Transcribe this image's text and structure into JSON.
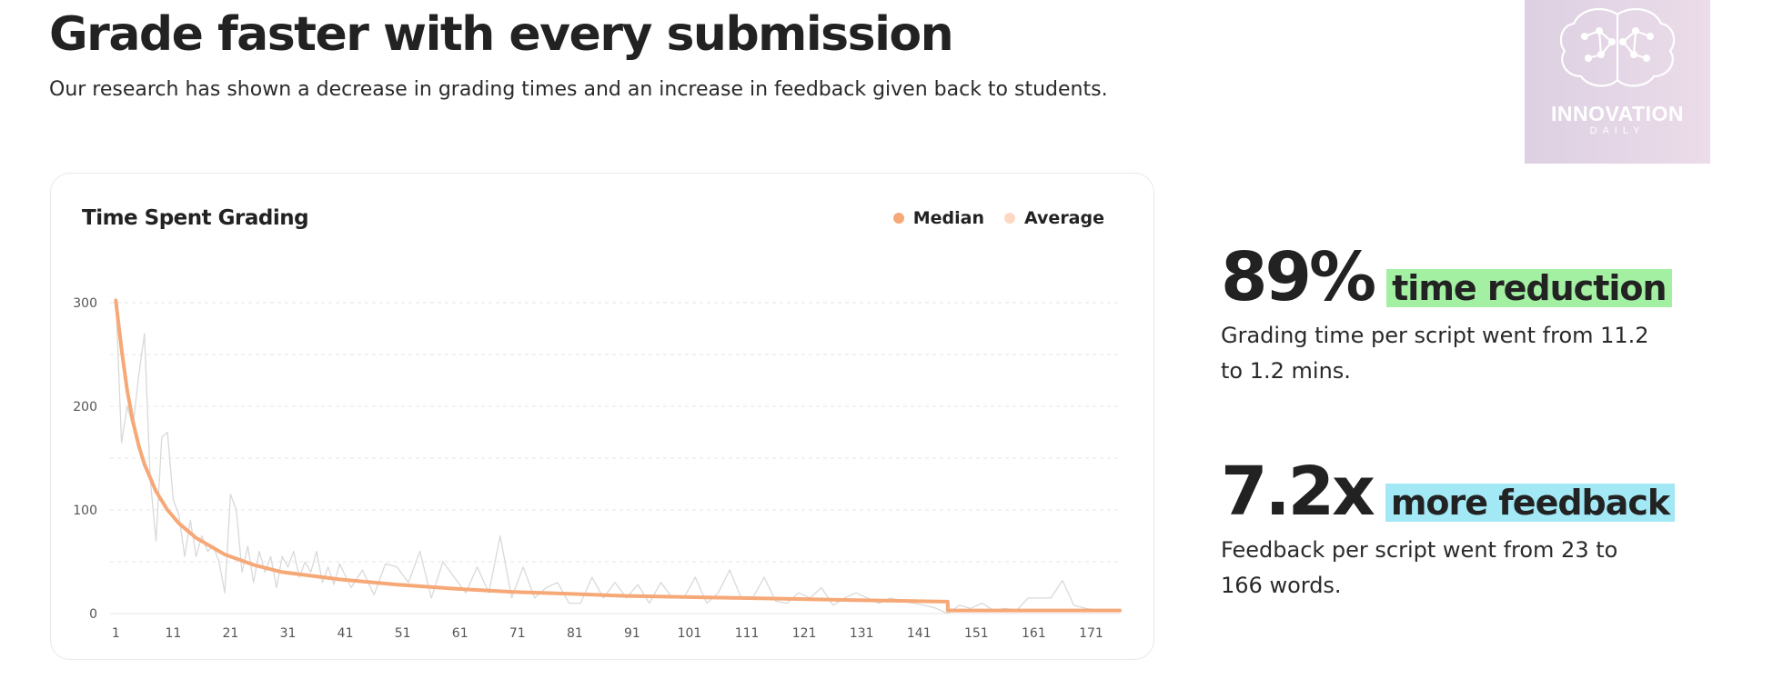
{
  "header": {
    "title": "Grade faster with every submission",
    "subtitle": "Our research has shown a decrease in grading times and an increase in feedback given back to students."
  },
  "logo": {
    "word": "INNOVATION",
    "sub": "DAILY"
  },
  "card": {
    "title": "Time Spent Grading",
    "legend": [
      {
        "label": "Median",
        "color": "#f6a877"
      },
      {
        "label": "Average",
        "color": "#fcd9c4"
      }
    ]
  },
  "stats": [
    {
      "value": "89%",
      "tag": "time reduction",
      "tag_color": "#a3f0a3",
      "desc": "Grading time per script went from 11.2 to 1.2 mins."
    },
    {
      "value": "7.2x",
      "tag": "more feedback",
      "tag_color": "#a3e8f5",
      "desc": "Feedback per script went from 23 to 166 words."
    }
  ],
  "chart_data": {
    "type": "line",
    "title": "Time Spent Grading",
    "xlabel": "",
    "ylabel": "",
    "xlim": [
      0,
      176
    ],
    "ylim": [
      0,
      300
    ],
    "x_ticks": [
      1,
      11,
      21,
      31,
      41,
      51,
      61,
      71,
      81,
      91,
      101,
      111,
      121,
      131,
      141,
      151,
      161,
      171
    ],
    "y_ticks": [
      0,
      100,
      200,
      300
    ],
    "grid": true,
    "legend_position": "top-right",
    "series": [
      {
        "name": "Median",
        "color": "#f6a877",
        "x": [
          1,
          2,
          3,
          4,
          5,
          6,
          8,
          10,
          12,
          15,
          20,
          25,
          30,
          40,
          50,
          60,
          70,
          80,
          90,
          100,
          110,
          120,
          130,
          140,
          146,
          146.01,
          160,
          170,
          176
        ],
        "y": [
          302,
          255,
          215,
          185,
          162,
          144,
          118,
          100,
          87,
          73,
          57,
          47,
          40,
          33,
          28,
          24,
          21,
          19,
          17,
          16,
          15,
          14,
          13,
          12,
          11.5,
          3,
          3,
          3,
          3
        ]
      },
      {
        "name": "Average",
        "color": "#d9d9d9",
        "x": [
          1,
          2,
          3,
          4,
          5,
          6,
          7,
          8,
          9,
          10,
          11,
          12,
          13,
          14,
          15,
          16,
          17,
          18,
          19,
          20,
          21,
          22,
          23,
          24,
          25,
          26,
          27,
          28,
          29,
          30,
          31,
          32,
          33,
          34,
          35,
          36,
          37,
          38,
          39,
          40,
          42,
          44,
          46,
          48,
          50,
          52,
          54,
          56,
          58,
          60,
          62,
          64,
          66,
          68,
          70,
          72,
          74,
          76,
          78,
          80,
          82,
          84,
          86,
          88,
          90,
          92,
          94,
          96,
          98,
          100,
          102,
          104,
          106,
          108,
          110,
          112,
          114,
          116,
          118,
          120,
          122,
          124,
          126,
          128,
          130,
          132,
          134,
          136,
          138,
          140,
          142,
          144,
          146,
          148,
          150,
          152,
          154,
          156,
          158,
          160,
          162,
          164,
          166,
          168,
          170,
          172
        ],
        "y": [
          305,
          165,
          200,
          180,
          230,
          270,
          130,
          70,
          170,
          175,
          110,
          95,
          55,
          90,
          55,
          75,
          60,
          65,
          50,
          20,
          115,
          100,
          40,
          65,
          30,
          60,
          40,
          55,
          25,
          55,
          45,
          60,
          35,
          50,
          40,
          60,
          30,
          45,
          28,
          48,
          25,
          42,
          18,
          48,
          45,
          30,
          60,
          15,
          50,
          35,
          20,
          45,
          20,
          75,
          15,
          45,
          15,
          25,
          30,
          10,
          10,
          35,
          15,
          30,
          15,
          28,
          10,
          30,
          15,
          15,
          35,
          10,
          20,
          42,
          15,
          15,
          35,
          12,
          10,
          20,
          15,
          25,
          8,
          15,
          20,
          15,
          10,
          15,
          12,
          10,
          8,
          5,
          0,
          8,
          5,
          10,
          3,
          5,
          3,
          15,
          15,
          15,
          32,
          8,
          5,
          3
        ]
      }
    ]
  }
}
